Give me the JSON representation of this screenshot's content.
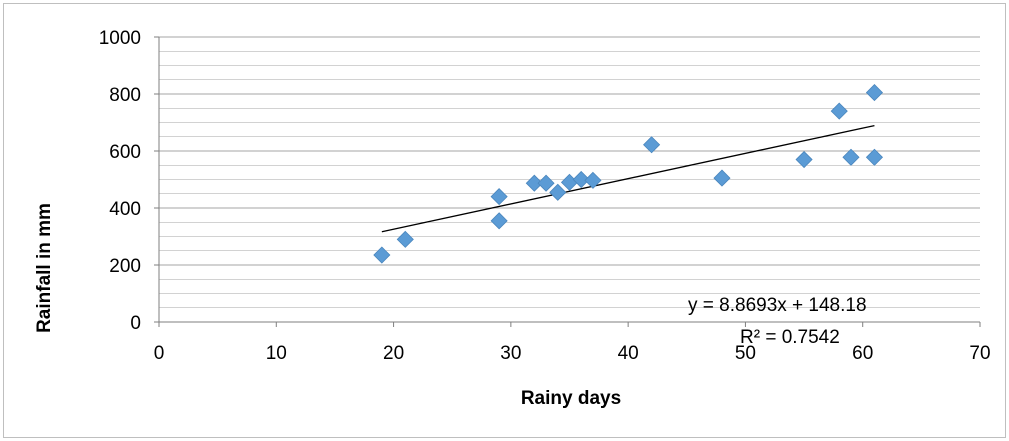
{
  "chart_data": {
    "type": "scatter",
    "title": "",
    "xlabel": "Rainy days",
    "ylabel": "Rainfall in mm",
    "xlim": [
      0,
      70
    ],
    "ylim": [
      0,
      1000
    ],
    "x_ticks": [
      0,
      10,
      20,
      30,
      40,
      50,
      60,
      70
    ],
    "y_ticks": [
      0,
      200,
      400,
      600,
      800,
      1000
    ],
    "y_minor_step": 50,
    "grid": true,
    "legend": "none",
    "marker": "diamond",
    "colors": {
      "marker": "#5b9bd5",
      "marker_edge": "#4a86bd",
      "trendline": "#000000",
      "grid": "#a6a6a6"
    },
    "points": [
      {
        "x": 19,
        "y": 235
      },
      {
        "x": 21,
        "y": 290
      },
      {
        "x": 29,
        "y": 355
      },
      {
        "x": 29,
        "y": 440
      },
      {
        "x": 32,
        "y": 487
      },
      {
        "x": 33,
        "y": 487
      },
      {
        "x": 34,
        "y": 455
      },
      {
        "x": 35,
        "y": 490
      },
      {
        "x": 36,
        "y": 500
      },
      {
        "x": 37,
        "y": 497
      },
      {
        "x": 42,
        "y": 622
      },
      {
        "x": 48,
        "y": 505
      },
      {
        "x": 55,
        "y": 570
      },
      {
        "x": 58,
        "y": 740
      },
      {
        "x": 59,
        "y": 578
      },
      {
        "x": 61,
        "y": 578
      },
      {
        "x": 61,
        "y": 805
      }
    ],
    "trendline": {
      "type": "linear",
      "slope": 8.8693,
      "intercept": 148.18,
      "x_range": [
        19,
        61
      ],
      "equation": "y = 8.8693x + 148.18",
      "r_squared": "R² = 0.7542"
    }
  }
}
